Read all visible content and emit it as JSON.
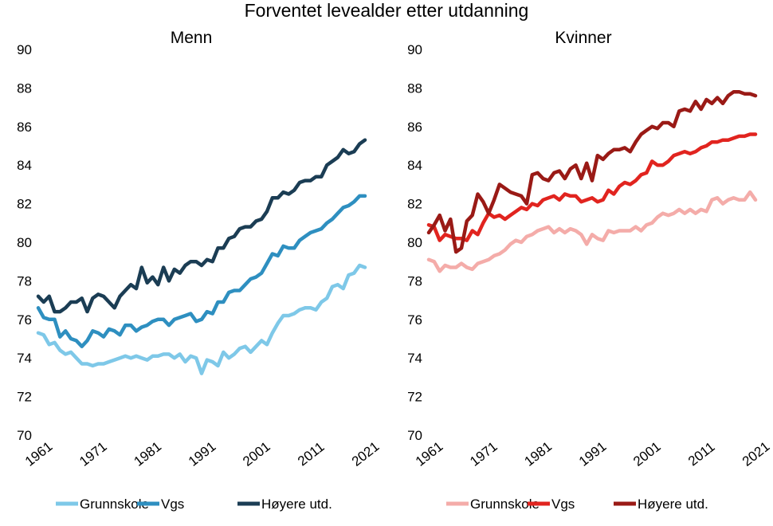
{
  "title": "Forventet levealder etter utdanning",
  "chart_data": [
    {
      "type": "line",
      "title": "Menn",
      "xlabel": "",
      "ylabel": "",
      "x_ticks": [
        "1961",
        "1971",
        "1981",
        "1991",
        "2001",
        "2011",
        "2021"
      ],
      "y_ticks": [
        "70",
        "72",
        "74",
        "76",
        "78",
        "80",
        "82",
        "84",
        "86",
        "88",
        "90"
      ],
      "xlim": [
        1961,
        2021
      ],
      "ylim": [
        70,
        90
      ],
      "grid": false,
      "legend": "bottom",
      "x": [
        1961,
        1962,
        1963,
        1964,
        1965,
        1966,
        1967,
        1968,
        1969,
        1970,
        1971,
        1972,
        1973,
        1974,
        1975,
        1976,
        1977,
        1978,
        1979,
        1980,
        1981,
        1982,
        1983,
        1984,
        1985,
        1986,
        1987,
        1988,
        1989,
        1990,
        1991,
        1992,
        1993,
        1994,
        1995,
        1996,
        1997,
        1998,
        1999,
        2000,
        2001,
        2002,
        2003,
        2004,
        2005,
        2006,
        2007,
        2008,
        2009,
        2010,
        2011,
        2012,
        2013,
        2014,
        2015,
        2016,
        2017,
        2018,
        2019,
        2020,
        2021
      ],
      "series": [
        {
          "name": "Grunnskole",
          "color": "#7ec8e8",
          "values": [
            75.3,
            75.2,
            74.7,
            74.8,
            74.4,
            74.2,
            74.3,
            74.0,
            73.7,
            73.7,
            73.6,
            73.7,
            73.7,
            73.8,
            73.9,
            74.0,
            74.1,
            74.0,
            74.1,
            74.0,
            73.9,
            74.1,
            74.1,
            74.2,
            74.2,
            74.0,
            74.2,
            73.8,
            74.1,
            74.0,
            73.2,
            73.9,
            73.8,
            73.6,
            74.3,
            74.0,
            74.2,
            74.5,
            74.6,
            74.3,
            74.6,
            74.9,
            74.7,
            75.3,
            75.8,
            76.2,
            76.2,
            76.3,
            76.5,
            76.6,
            76.6,
            76.5,
            76.9,
            77.1,
            77.7,
            77.8,
            77.6,
            78.3,
            78.4,
            78.8,
            78.7
          ]
        },
        {
          "name": "Vgs",
          "color": "#2e8fc0",
          "values": [
            76.6,
            76.1,
            76.0,
            76.0,
            75.1,
            75.4,
            75.0,
            74.9,
            74.6,
            74.9,
            75.4,
            75.3,
            75.1,
            75.5,
            75.4,
            75.2,
            75.7,
            75.7,
            75.4,
            75.6,
            75.7,
            75.9,
            76.0,
            76.0,
            75.7,
            76.0,
            76.1,
            76.2,
            76.3,
            75.9,
            76.0,
            76.4,
            76.3,
            76.9,
            76.9,
            77.4,
            77.5,
            77.5,
            77.8,
            78.1,
            78.2,
            78.4,
            78.9,
            79.4,
            79.3,
            79.8,
            79.7,
            79.7,
            80.1,
            80.3,
            80.5,
            80.6,
            80.7,
            81.0,
            81.2,
            81.5,
            81.8,
            81.9,
            82.1,
            82.4,
            82.4
          ]
        },
        {
          "name": "Høyere utd.",
          "color": "#1b3d54",
          "values": [
            77.2,
            76.9,
            77.2,
            76.4,
            76.4,
            76.6,
            76.9,
            76.9,
            77.1,
            76.4,
            77.1,
            77.3,
            77.2,
            76.9,
            76.6,
            77.2,
            77.5,
            77.8,
            77.6,
            78.7,
            77.9,
            78.2,
            77.8,
            78.7,
            78.0,
            78.6,
            78.4,
            78.8,
            79.0,
            79.0,
            78.8,
            79.1,
            79.0,
            79.7,
            79.7,
            80.2,
            80.3,
            80.7,
            80.8,
            80.8,
            81.1,
            81.2,
            81.6,
            82.3,
            82.3,
            82.6,
            82.5,
            82.7,
            83.1,
            83.2,
            83.2,
            83.4,
            83.4,
            84.0,
            84.2,
            84.4,
            84.8,
            84.6,
            84.7,
            85.1,
            85.3
          ]
        }
      ]
    },
    {
      "type": "line",
      "title": "Kvinner",
      "xlabel": "",
      "ylabel": "",
      "x_ticks": [
        "1961",
        "1971",
        "1981",
        "1991",
        "2001",
        "2011",
        "2021"
      ],
      "y_ticks": [
        "70",
        "72",
        "74",
        "76",
        "78",
        "80",
        "82",
        "84",
        "86",
        "88",
        "90"
      ],
      "xlim": [
        1961,
        2021
      ],
      "ylim": [
        70,
        90
      ],
      "grid": false,
      "legend": "bottom",
      "x": [
        1961,
        1962,
        1963,
        1964,
        1965,
        1966,
        1967,
        1968,
        1969,
        1970,
        1971,
        1972,
        1973,
        1974,
        1975,
        1976,
        1977,
        1978,
        1979,
        1980,
        1981,
        1982,
        1983,
        1984,
        1985,
        1986,
        1987,
        1988,
        1989,
        1990,
        1991,
        1992,
        1993,
        1994,
        1995,
        1996,
        1997,
        1998,
        1999,
        2000,
        2001,
        2002,
        2003,
        2004,
        2005,
        2006,
        2007,
        2008,
        2009,
        2010,
        2011,
        2012,
        2013,
        2014,
        2015,
        2016,
        2017,
        2018,
        2019,
        2020,
        2021
      ],
      "series": [
        {
          "name": "Grunnskole",
          "color": "#f4aca9",
          "values": [
            79.1,
            79.0,
            78.5,
            78.8,
            78.7,
            78.7,
            78.9,
            78.7,
            78.6,
            78.9,
            79.0,
            79.1,
            79.3,
            79.4,
            79.6,
            79.9,
            80.1,
            80.0,
            80.3,
            80.4,
            80.6,
            80.7,
            80.8,
            80.5,
            80.7,
            80.5,
            80.7,
            80.6,
            80.4,
            79.9,
            80.4,
            80.2,
            80.1,
            80.6,
            80.5,
            80.6,
            80.6,
            80.6,
            80.8,
            80.6,
            80.9,
            81.0,
            81.3,
            81.5,
            81.4,
            81.5,
            81.7,
            81.5,
            81.7,
            81.5,
            81.7,
            81.6,
            82.2,
            82.3,
            82.0,
            82.2,
            82.3,
            82.2,
            82.2,
            82.6,
            82.2
          ]
        },
        {
          "name": "Vgs",
          "color": "#e1241f",
          "values": [
            80.9,
            80.8,
            80.1,
            80.4,
            80.3,
            80.2,
            80.2,
            80.1,
            80.6,
            80.4,
            81.0,
            81.5,
            81.3,
            81.4,
            81.2,
            81.4,
            81.6,
            81.8,
            81.7,
            82.0,
            81.9,
            82.2,
            82.3,
            82.4,
            82.2,
            82.5,
            82.4,
            82.4,
            82.1,
            82.2,
            82.3,
            82.1,
            82.2,
            82.7,
            82.5,
            82.9,
            83.1,
            83.0,
            83.2,
            83.5,
            83.6,
            84.2,
            84.0,
            84.0,
            84.2,
            84.5,
            84.6,
            84.7,
            84.6,
            84.7,
            84.9,
            85.0,
            85.2,
            85.2,
            85.3,
            85.3,
            85.4,
            85.5,
            85.5,
            85.6,
            85.6
          ]
        },
        {
          "name": "Høyere utd.",
          "color": "#9a1a16",
          "values": [
            80.5,
            80.9,
            81.4,
            80.6,
            81.2,
            79.5,
            79.7,
            81.1,
            81.4,
            82.5,
            82.1,
            81.5,
            82.2,
            83.0,
            82.8,
            82.6,
            82.5,
            82.4,
            82.0,
            83.5,
            83.6,
            83.3,
            83.2,
            83.6,
            83.7,
            83.3,
            83.8,
            84.0,
            83.3,
            84.1,
            83.2,
            84.5,
            84.3,
            84.6,
            84.8,
            84.8,
            84.9,
            84.7,
            85.2,
            85.6,
            85.8,
            86.0,
            85.9,
            86.2,
            86.2,
            86.0,
            86.8,
            86.9,
            86.8,
            87.3,
            86.9,
            87.4,
            87.2,
            87.5,
            87.2,
            87.6,
            87.8,
            87.8,
            87.7,
            87.7,
            87.6
          ]
        }
      ]
    }
  ]
}
